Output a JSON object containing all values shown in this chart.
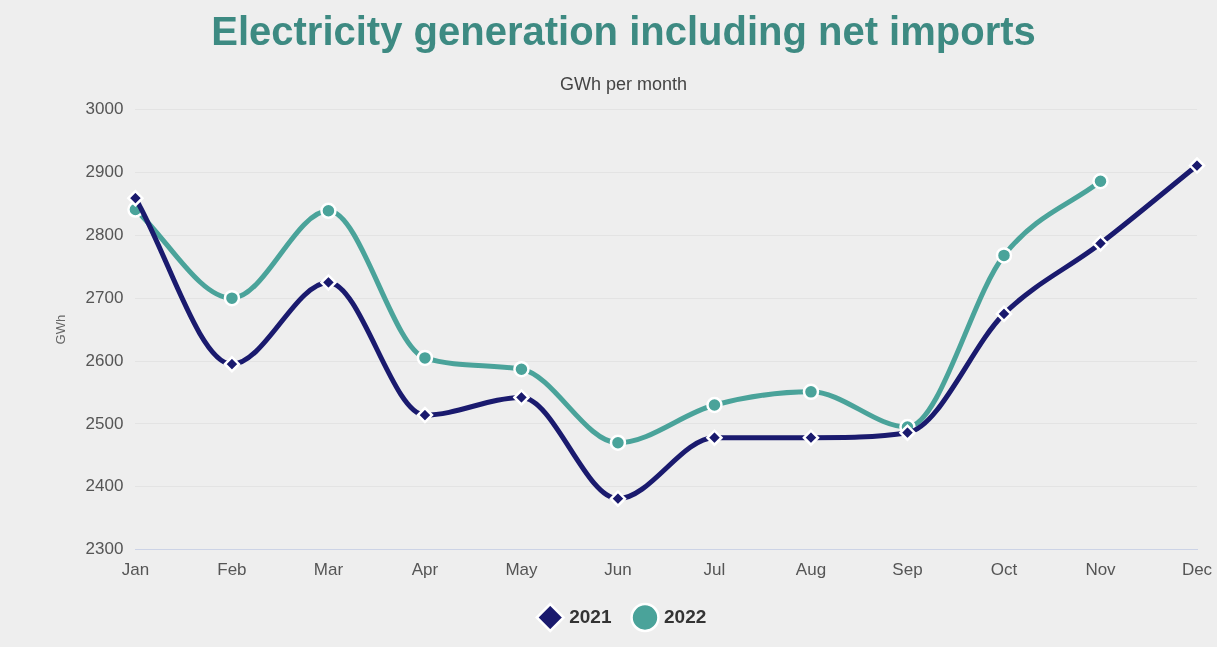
{
  "chart_data": {
    "type": "line",
    "title": "Electricity generation including net imports",
    "subtitle": "GWh per month",
    "ylabel": "GWh",
    "categories": [
      "Jan",
      "Feb",
      "Mar",
      "Apr",
      "May",
      "Jun",
      "Jul",
      "Aug",
      "Sep",
      "Oct",
      "Nov",
      "Dec"
    ],
    "series": [
      {
        "name": "2022",
        "color": "#4aa39a",
        "marker": "circle",
        "values": [
          2841,
          2700,
          2839,
          2605,
          2587,
          2470,
          2530,
          2551,
          2495,
          2768,
          2886,
          null
        ]
      },
      {
        "name": "2021",
        "color": "#1a1a6e",
        "marker": "diamond",
        "values": [
          2859,
          2595,
          2725,
          2514,
          2542,
          2381,
          2478,
          2478,
          2486,
          2675,
          2787,
          2911
        ]
      }
    ],
    "ylim": [
      2300,
      3000
    ],
    "yticks": [
      2300,
      2400,
      2500,
      2600,
      2700,
      2800,
      2900,
      3000
    ],
    "grid": "y",
    "legend": "bottom"
  }
}
